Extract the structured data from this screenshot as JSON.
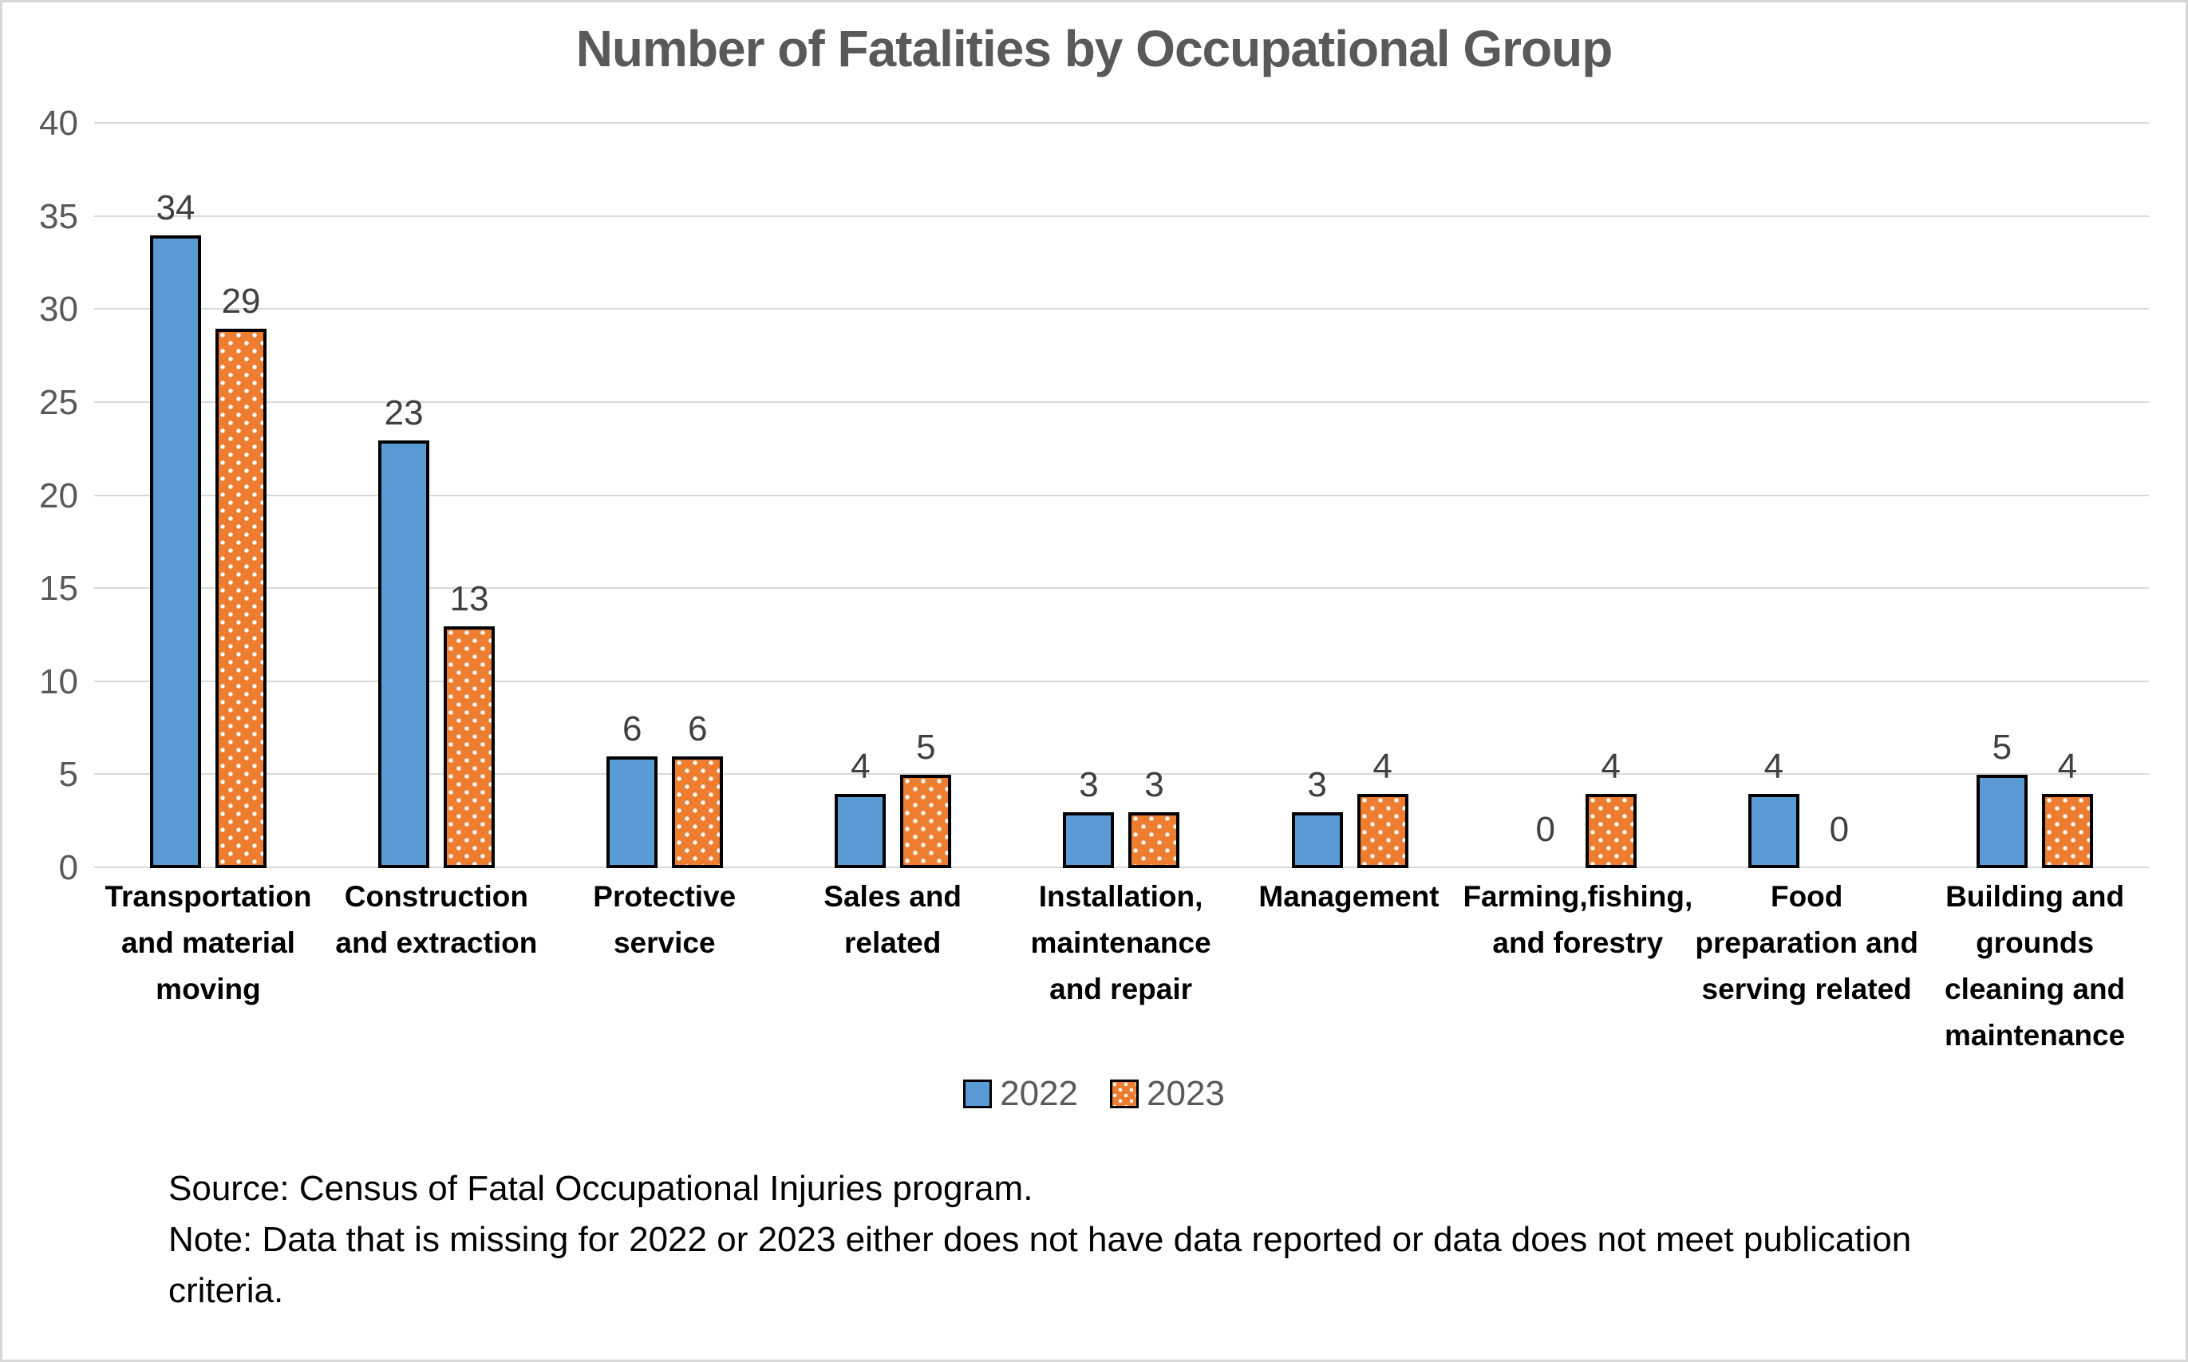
{
  "chart_data": {
    "type": "bar",
    "title": "Number of Fatalities by Occupational Group",
    "categories": [
      "Transportation\nand material\nmoving",
      "Construction\nand extraction",
      "Protective\nservice",
      "Sales and\nrelated",
      "Installation,\nmaintenance\nand repair",
      "Management",
      "Farming,fishing,\nand forestry",
      "Food\npreparation and\nserving related",
      "Building and\ngrounds\ncleaning and\nmaintenance"
    ],
    "series": [
      {
        "name": "2022",
        "color": "#5B9BD5",
        "pattern": "solid",
        "values": [
          34,
          23,
          6,
          4,
          3,
          3,
          0,
          4,
          5
        ]
      },
      {
        "name": "2023",
        "color": "#ED7D31",
        "pattern": "white-dots",
        "values": [
          29,
          13,
          6,
          5,
          3,
          4,
          4,
          0,
          4
        ]
      }
    ],
    "xlabel": "",
    "ylabel": "",
    "ylim": [
      0,
      40
    ],
    "yticks": [
      0,
      5,
      10,
      15,
      20,
      25,
      30,
      35,
      40
    ],
    "grid": true,
    "data_labels": true,
    "legend_position": "bottom",
    "colors": {
      "grid": "#D9D9D9",
      "title_text": "#595959",
      "tick_text": "#595959",
      "value_label_text": "#404040",
      "category_label_text": "#000000",
      "bar_border": "#000000",
      "canvas_border": "#D7D7D7"
    }
  },
  "footer": {
    "source": "Source: Census of Fatal Occupational Injuries program.",
    "note": "Note: Data that is missing for 2022 or 2023 either does not have data reported or data does not meet publication criteria."
  }
}
